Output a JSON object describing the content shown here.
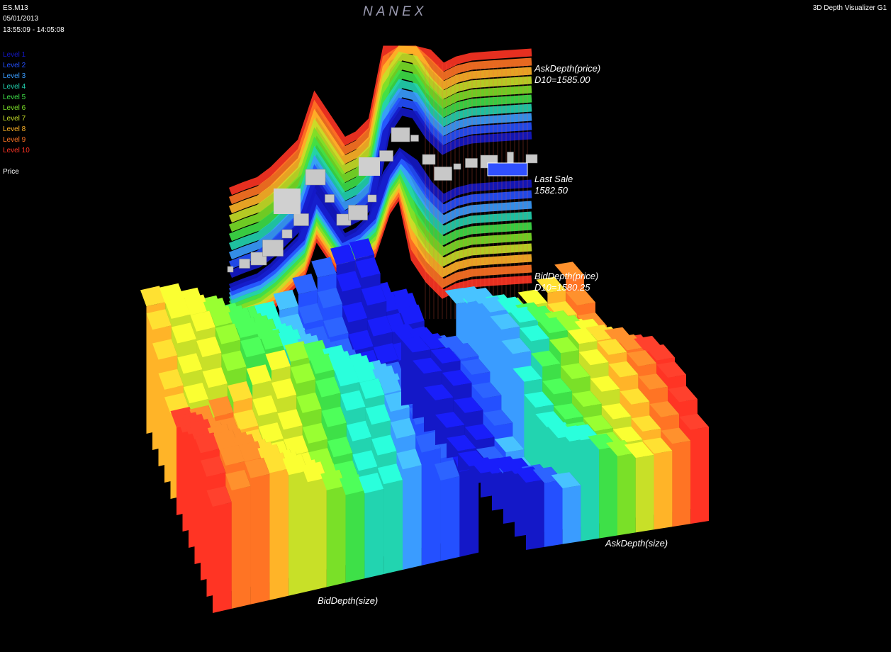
{
  "header": {
    "symbol": "ES.M13",
    "date": "05/01/2013",
    "time_range": "13:55:09 - 14:05:08",
    "brand": "NANEX",
    "app_title": "3D Depth Visualizer G1"
  },
  "legend": [
    {
      "label": "Level 1",
      "color": "#1418c8"
    },
    {
      "label": "Level 2",
      "color": "#2450ff"
    },
    {
      "label": "Level 3",
      "color": "#3a9cff"
    },
    {
      "label": "Level 4",
      "color": "#22d4b0"
    },
    {
      "label": "Level 5",
      "color": "#3ee048"
    },
    {
      "label": "Level 6",
      "color": "#7ae028"
    },
    {
      "label": "Level 7",
      "color": "#c8e028"
    },
    {
      "label": "Level 8",
      "color": "#ffb428"
    },
    {
      "label": "Level 9",
      "color": "#ff7424"
    },
    {
      "label": "Level 10",
      "color": "#ff3424"
    }
  ],
  "price_label": "Price",
  "annotations": {
    "ask_price": {
      "title": "AskDepth(price)",
      "value": "D10=1585.00"
    },
    "last_sale": {
      "title": "Last Sale",
      "value": "1582.50"
    },
    "bid_price": {
      "title": "BidDepth(price)",
      "value": "D10=1580.25"
    },
    "ask_size": "AskDepth(size)",
    "bid_size": "BidDepth(size)"
  }
}
